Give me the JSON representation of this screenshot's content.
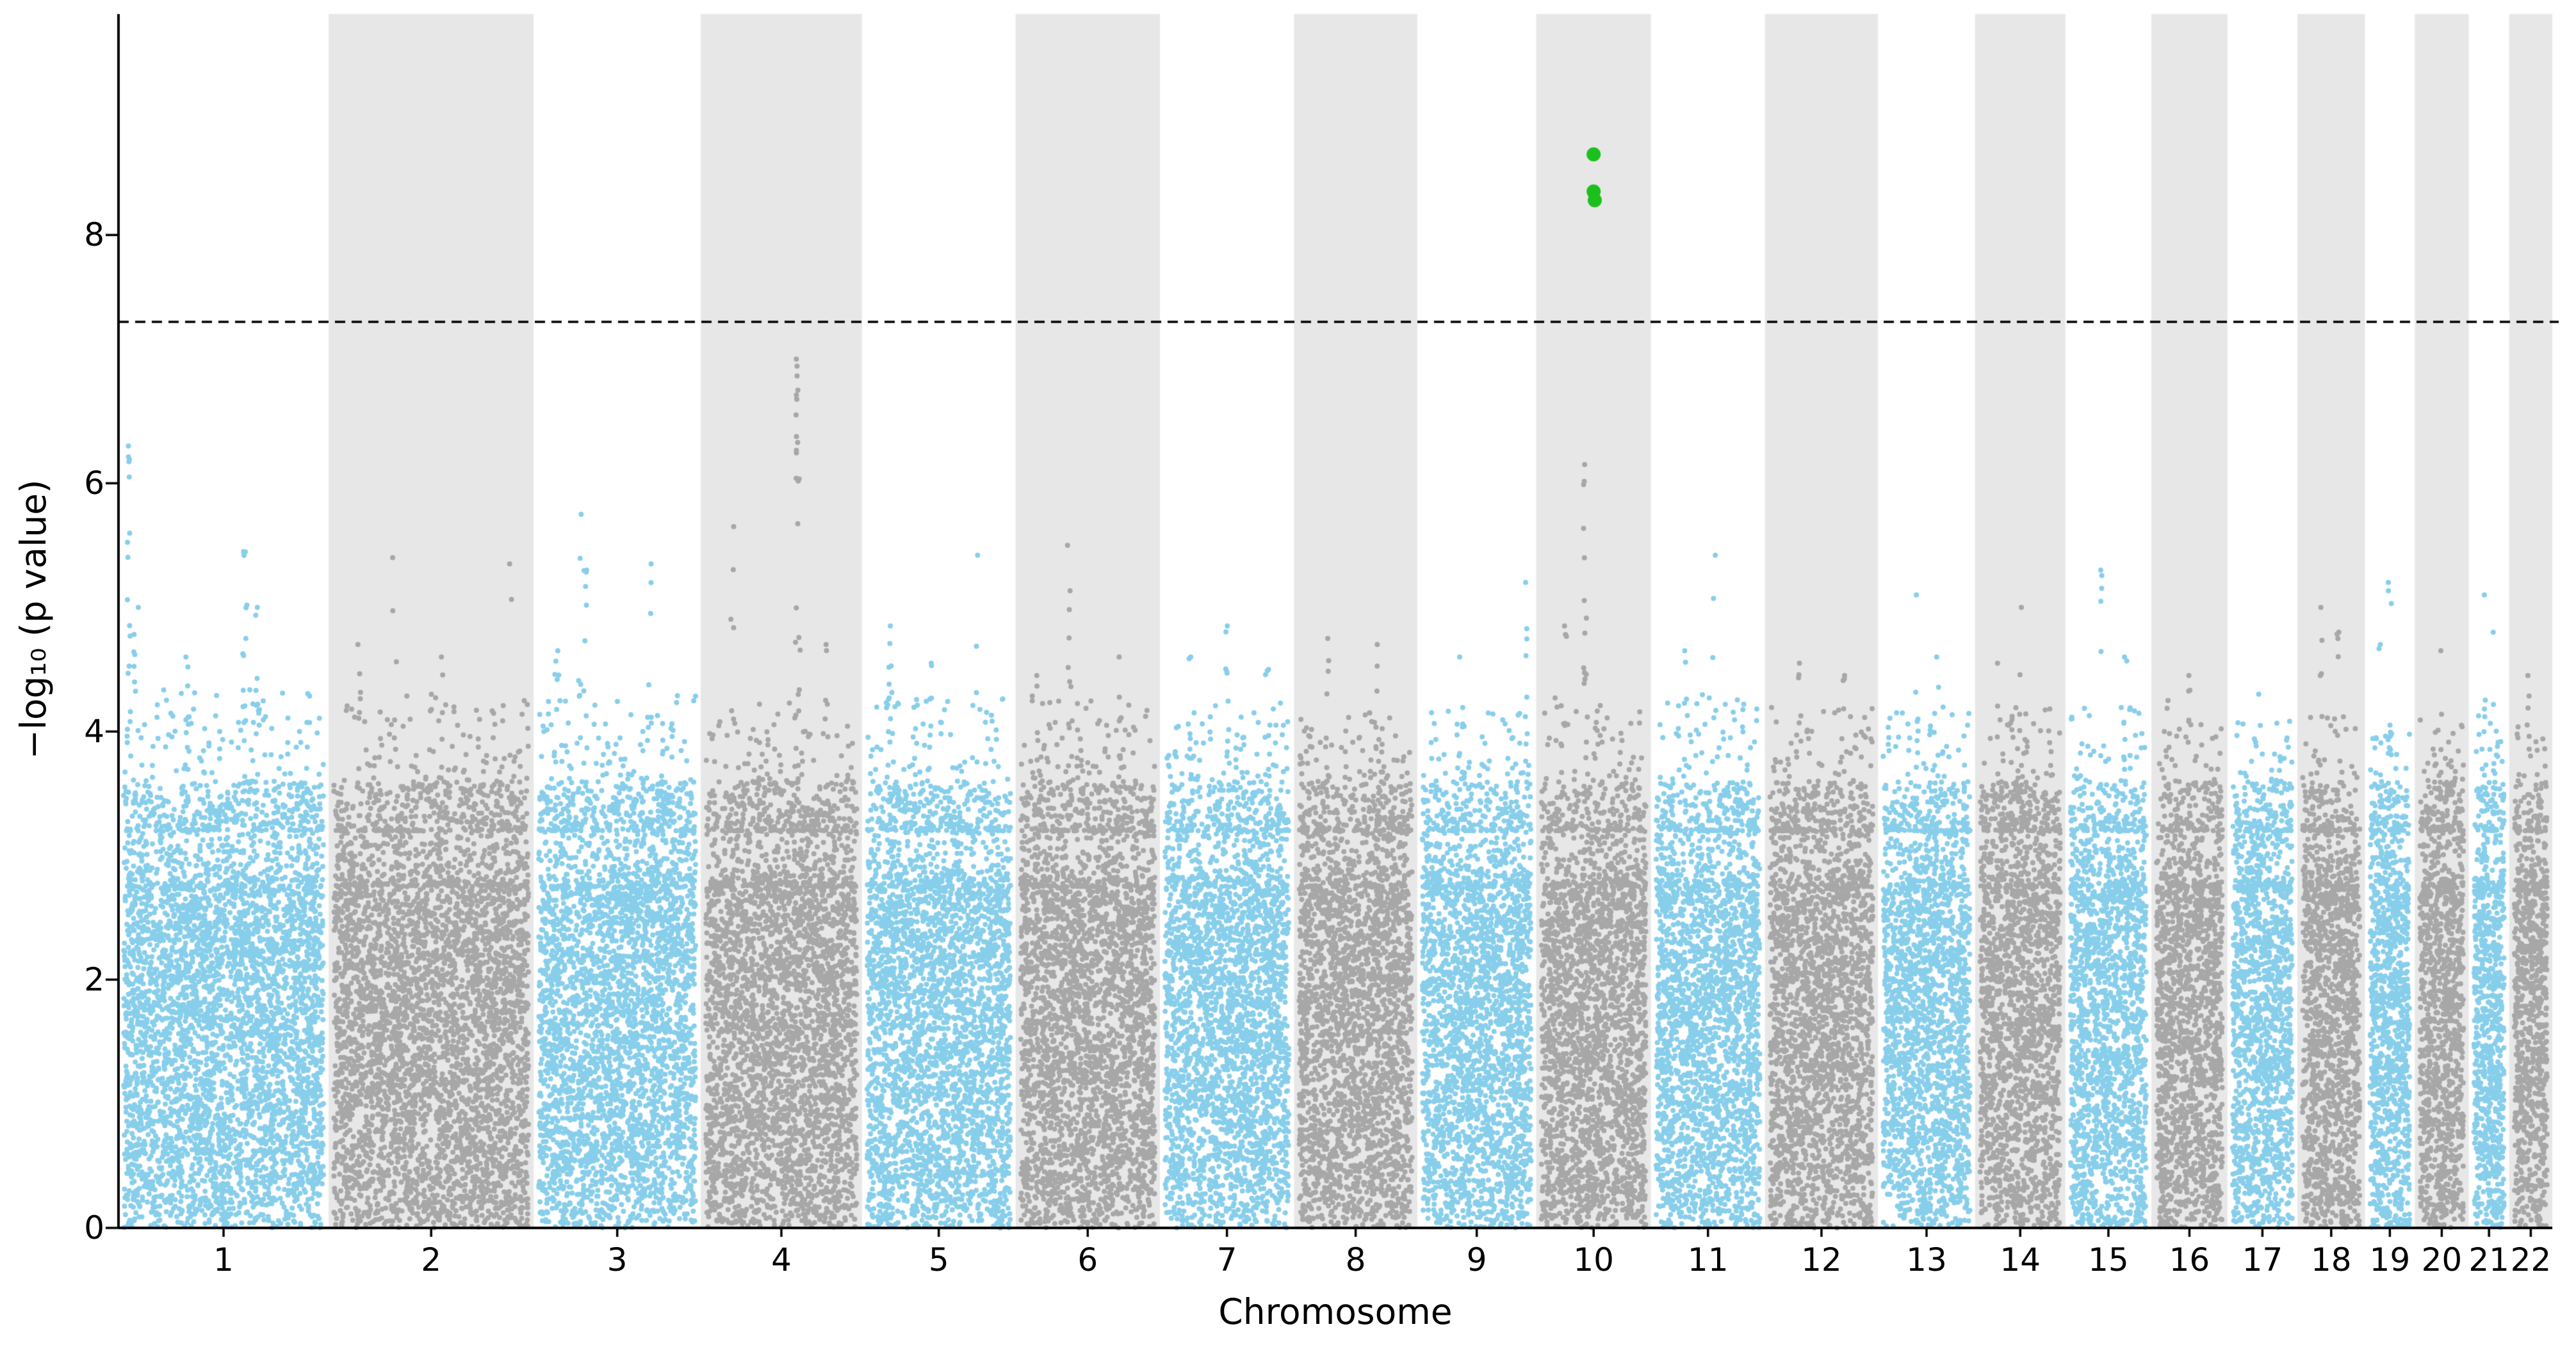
{
  "chart_data": {
    "type": "scatter",
    "subtype": "manhattan-plot",
    "title": "",
    "xlabel": "Chromosome",
    "ylabel": "−log₁₀ (p value)",
    "ylim": [
      0,
      9.78
    ],
    "yticks": [
      0,
      2,
      4,
      6,
      8
    ],
    "grid": false,
    "legend": "none",
    "significance_threshold": 7.3,
    "threshold_line_style": "dashed",
    "total_points": 52000,
    "colors": {
      "odd_chrom": "#87CEEB",
      "even_chrom": "#A7A7A7",
      "band": "#E7E7E7",
      "highlight": "#1DBF1D",
      "threshold": "#000000",
      "axis": "#000000",
      "text": "#000000"
    },
    "chromosomes": [
      {
        "label": "1",
        "size": 249,
        "ambient_max": 4.35,
        "peaks": [
          {
            "pos": 0.05,
            "height": 6.3,
            "count": 18
          },
          {
            "pos": 0.08,
            "height": 5.0,
            "count": 8
          },
          {
            "pos": 0.6,
            "height": 5.45,
            "count": 12
          },
          {
            "pos": 0.66,
            "height": 5.0,
            "count": 8
          },
          {
            "pos": 0.33,
            "height": 4.6,
            "count": 7
          }
        ]
      },
      {
        "label": "2",
        "size": 243,
        "ambient_max": 4.3,
        "peaks": [
          {
            "pos": 0.32,
            "height": 5.4,
            "count": 3
          },
          {
            "pos": 0.88,
            "height": 5.35,
            "count": 2
          },
          {
            "pos": 0.15,
            "height": 4.7,
            "count": 5
          },
          {
            "pos": 0.55,
            "height": 4.6,
            "count": 5
          }
        ]
      },
      {
        "label": "3",
        "size": 198,
        "ambient_max": 4.3,
        "peaks": [
          {
            "pos": 0.28,
            "height": 5.75,
            "count": 6
          },
          {
            "pos": 0.31,
            "height": 5.3,
            "count": 8
          },
          {
            "pos": 0.7,
            "height": 5.35,
            "count": 4
          },
          {
            "pos": 0.14,
            "height": 4.65,
            "count": 6
          }
        ]
      },
      {
        "label": "4",
        "size": 191,
        "ambient_max": 4.25,
        "peaks": [
          {
            "pos": 0.6,
            "height": 7.0,
            "count": 24
          },
          {
            "pos": 0.2,
            "height": 5.65,
            "count": 5
          },
          {
            "pos": 0.78,
            "height": 4.7,
            "count": 5
          }
        ]
      },
      {
        "label": "5",
        "size": 182,
        "ambient_max": 4.3,
        "peaks": [
          {
            "pos": 0.75,
            "height": 5.42,
            "count": 3
          },
          {
            "pos": 0.18,
            "height": 4.85,
            "count": 9
          },
          {
            "pos": 0.45,
            "height": 4.55,
            "count": 6
          }
        ]
      },
      {
        "label": "6",
        "size": 171,
        "ambient_max": 4.3,
        "peaks": [
          {
            "pos": 0.37,
            "height": 5.5,
            "count": 9
          },
          {
            "pos": 0.72,
            "height": 4.6,
            "count": 5
          },
          {
            "pos": 0.15,
            "height": 4.45,
            "count": 4
          }
        ]
      },
      {
        "label": "7",
        "size": 159,
        "ambient_max": 4.25,
        "peaks": [
          {
            "pos": 0.5,
            "height": 4.85,
            "count": 7
          },
          {
            "pos": 0.22,
            "height": 4.6,
            "count": 5
          },
          {
            "pos": 0.8,
            "height": 4.5,
            "count": 4
          }
        ]
      },
      {
        "label": "8",
        "size": 146,
        "ambient_max": 4.2,
        "peaks": [
          {
            "pos": 0.28,
            "height": 4.75,
            "count": 5
          },
          {
            "pos": 0.68,
            "height": 4.7,
            "count": 5
          }
        ]
      },
      {
        "label": "9",
        "size": 141,
        "ambient_max": 4.2,
        "peaks": [
          {
            "pos": 0.92,
            "height": 5.2,
            "count": 10
          },
          {
            "pos": 0.35,
            "height": 4.6,
            "count": 4
          }
        ]
      },
      {
        "label": "10",
        "size": 136,
        "ambient_max": 4.3,
        "peaks": [
          {
            "pos": 0.42,
            "height": 6.15,
            "count": 14
          },
          {
            "pos": 0.25,
            "height": 4.85,
            "count": 5
          }
        ]
      },
      {
        "label": "11",
        "size": 135,
        "ambient_max": 4.3,
        "peaks": [
          {
            "pos": 0.55,
            "height": 5.42,
            "count": 3
          },
          {
            "pos": 0.3,
            "height": 4.65,
            "count": 6
          }
        ]
      },
      {
        "label": "12",
        "size": 134,
        "ambient_max": 4.2,
        "peaks": [
          {
            "pos": 0.3,
            "height": 4.55,
            "count": 5
          },
          {
            "pos": 0.7,
            "height": 4.45,
            "count": 4
          }
        ]
      },
      {
        "label": "13",
        "size": 115,
        "ambient_max": 4.2,
        "peaks": [
          {
            "pos": 0.4,
            "height": 5.1,
            "count": 4
          },
          {
            "pos": 0.62,
            "height": 4.6,
            "count": 4
          }
        ]
      },
      {
        "label": "14",
        "size": 107,
        "ambient_max": 4.2,
        "peaks": [
          {
            "pos": 0.5,
            "height": 5.0,
            "count": 4
          },
          {
            "pos": 0.25,
            "height": 4.55,
            "count": 4
          }
        ]
      },
      {
        "label": "15",
        "size": 102,
        "ambient_max": 4.2,
        "peaks": [
          {
            "pos": 0.42,
            "height": 5.3,
            "count": 5
          },
          {
            "pos": 0.7,
            "height": 4.6,
            "count": 3
          }
        ]
      },
      {
        "label": "16",
        "size": 90,
        "ambient_max": 4.1,
        "peaks": [
          {
            "pos": 0.5,
            "height": 4.45,
            "count": 4
          },
          {
            "pos": 0.22,
            "height": 4.25,
            "count": 3
          }
        ]
      },
      {
        "label": "17",
        "size": 83,
        "ambient_max": 4.1,
        "peaks": [
          {
            "pos": 0.42,
            "height": 4.3,
            "count": 4
          }
        ]
      },
      {
        "label": "18",
        "size": 80,
        "ambient_max": 4.15,
        "peaks": [
          {
            "pos": 0.35,
            "height": 5.0,
            "count": 6
          },
          {
            "pos": 0.6,
            "height": 4.8,
            "count": 4
          }
        ]
      },
      {
        "label": "19",
        "size": 59,
        "ambient_max": 4.1,
        "peaks": [
          {
            "pos": 0.5,
            "height": 5.2,
            "count": 4
          },
          {
            "pos": 0.3,
            "height": 4.7,
            "count": 3
          }
        ]
      },
      {
        "label": "20",
        "size": 64,
        "ambient_max": 4.1,
        "peaks": [
          {
            "pos": 0.5,
            "height": 4.65,
            "count": 4
          }
        ]
      },
      {
        "label": "21",
        "size": 48,
        "ambient_max": 4.15,
        "peaks": [
          {
            "pos": 0.4,
            "height": 5.1,
            "count": 5
          },
          {
            "pos": 0.62,
            "height": 4.8,
            "count": 3
          }
        ]
      },
      {
        "label": "22",
        "size": 51,
        "ambient_max": 4.1,
        "peaks": [
          {
            "pos": 0.45,
            "height": 4.45,
            "count": 4
          }
        ]
      }
    ],
    "highlighted_points": [
      {
        "chrom": "10",
        "pos": 0.5,
        "value": 8.65
      },
      {
        "chrom": "10",
        "pos": 0.5,
        "value": 8.35
      },
      {
        "chrom": "10",
        "pos": 0.51,
        "value": 8.28
      }
    ]
  }
}
